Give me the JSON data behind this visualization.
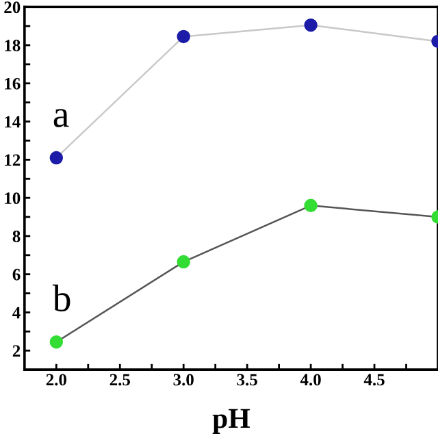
{
  "chart_data": {
    "type": "line",
    "xlabel": "pH",
    "x": [
      2.0,
      3.0,
      4.0,
      5.0
    ],
    "series": [
      {
        "name": "a",
        "color": "#c8c8c8",
        "colors": [
          "#1c1ca8",
          "#1c1ca8",
          "#1c1ca8",
          "#1c1ca8"
        ],
        "values": [
          12.1,
          18.45,
          19.05,
          18.2
        ]
      },
      {
        "name": "b",
        "color": "#555555",
        "colors": [
          "#33dd33",
          "#33dd33",
          "#33dd33",
          "#33dd33"
        ],
        "values": [
          2.45,
          6.65,
          9.6,
          9.0
        ]
      }
    ],
    "xlim": [
      1.75,
      5.0
    ],
    "ylim": [
      1,
      20
    ],
    "xticks": [
      {
        "value": 2.0,
        "label": "2.0"
      },
      {
        "value": 2.25,
        "label": null
      },
      {
        "value": 2.5,
        "label": "2.5"
      },
      {
        "value": 2.75,
        "label": null
      },
      {
        "value": 3.0,
        "label": "3.0"
      },
      {
        "value": 3.25,
        "label": null
      },
      {
        "value": 3.5,
        "label": "3.5"
      },
      {
        "value": 3.75,
        "label": null
      },
      {
        "value": 4.0,
        "label": "4.0"
      },
      {
        "value": 4.25,
        "label": null
      },
      {
        "value": 4.5,
        "label": "4.5"
      },
      {
        "value": 4.75,
        "label": null
      }
    ],
    "yticks": [
      2,
      {
        "value": 3,
        "label": null
      },
      4,
      {
        "value": 5,
        "label": null
      },
      6,
      {
        "value": 7,
        "label": null
      },
      8,
      {
        "value": 9,
        "label": null
      },
      10,
      {
        "value": 11,
        "label": null
      },
      12,
      {
        "value": 13,
        "label": null
      },
      14,
      {
        "value": 15,
        "label": null
      },
      16,
      {
        "value": 17,
        "label": null
      },
      18,
      {
        "value": 19,
        "label": null
      },
      20
    ],
    "marker": "circle",
    "line_style": "solid",
    "grid": false,
    "legend": false
  }
}
